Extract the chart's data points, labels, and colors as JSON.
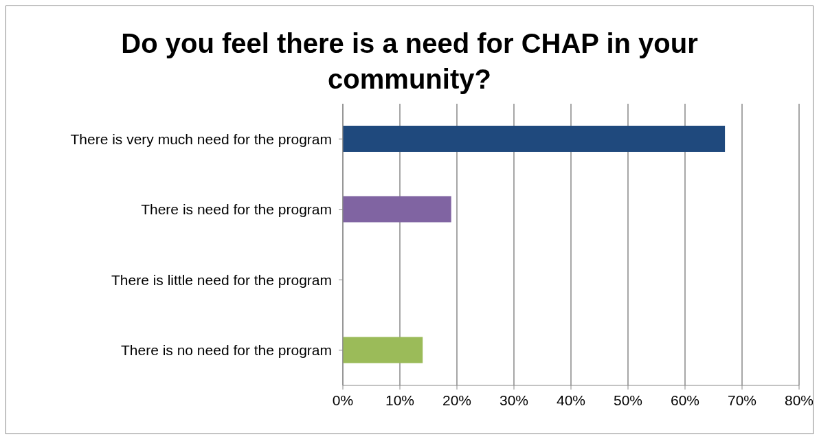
{
  "chart_data": {
    "type": "bar",
    "orientation": "horizontal",
    "title": "Do you feel there is a need for CHAP in your community?",
    "categories": [
      "There is very much need for the program",
      "There is need for the program",
      "There is little need for the program",
      "There is no need for the program"
    ],
    "values": [
      67,
      19,
      0,
      14
    ],
    "colors": [
      "#1f497d",
      "#8064a2",
      null,
      "#9bbb59"
    ],
    "xlim": [
      0,
      80
    ],
    "xticks": [
      {
        "value": 0,
        "label": "0%"
      },
      {
        "value": 10,
        "label": "10%"
      },
      {
        "value": 20,
        "label": "20%"
      },
      {
        "value": 30,
        "label": "30%"
      },
      {
        "value": 40,
        "label": "40%"
      },
      {
        "value": 50,
        "label": "50%"
      },
      {
        "value": 60,
        "label": "60%"
      },
      {
        "value": 70,
        "label": "70%"
      },
      {
        "value": 80,
        "label": "80%"
      }
    ],
    "grid": "x",
    "legend": false
  }
}
